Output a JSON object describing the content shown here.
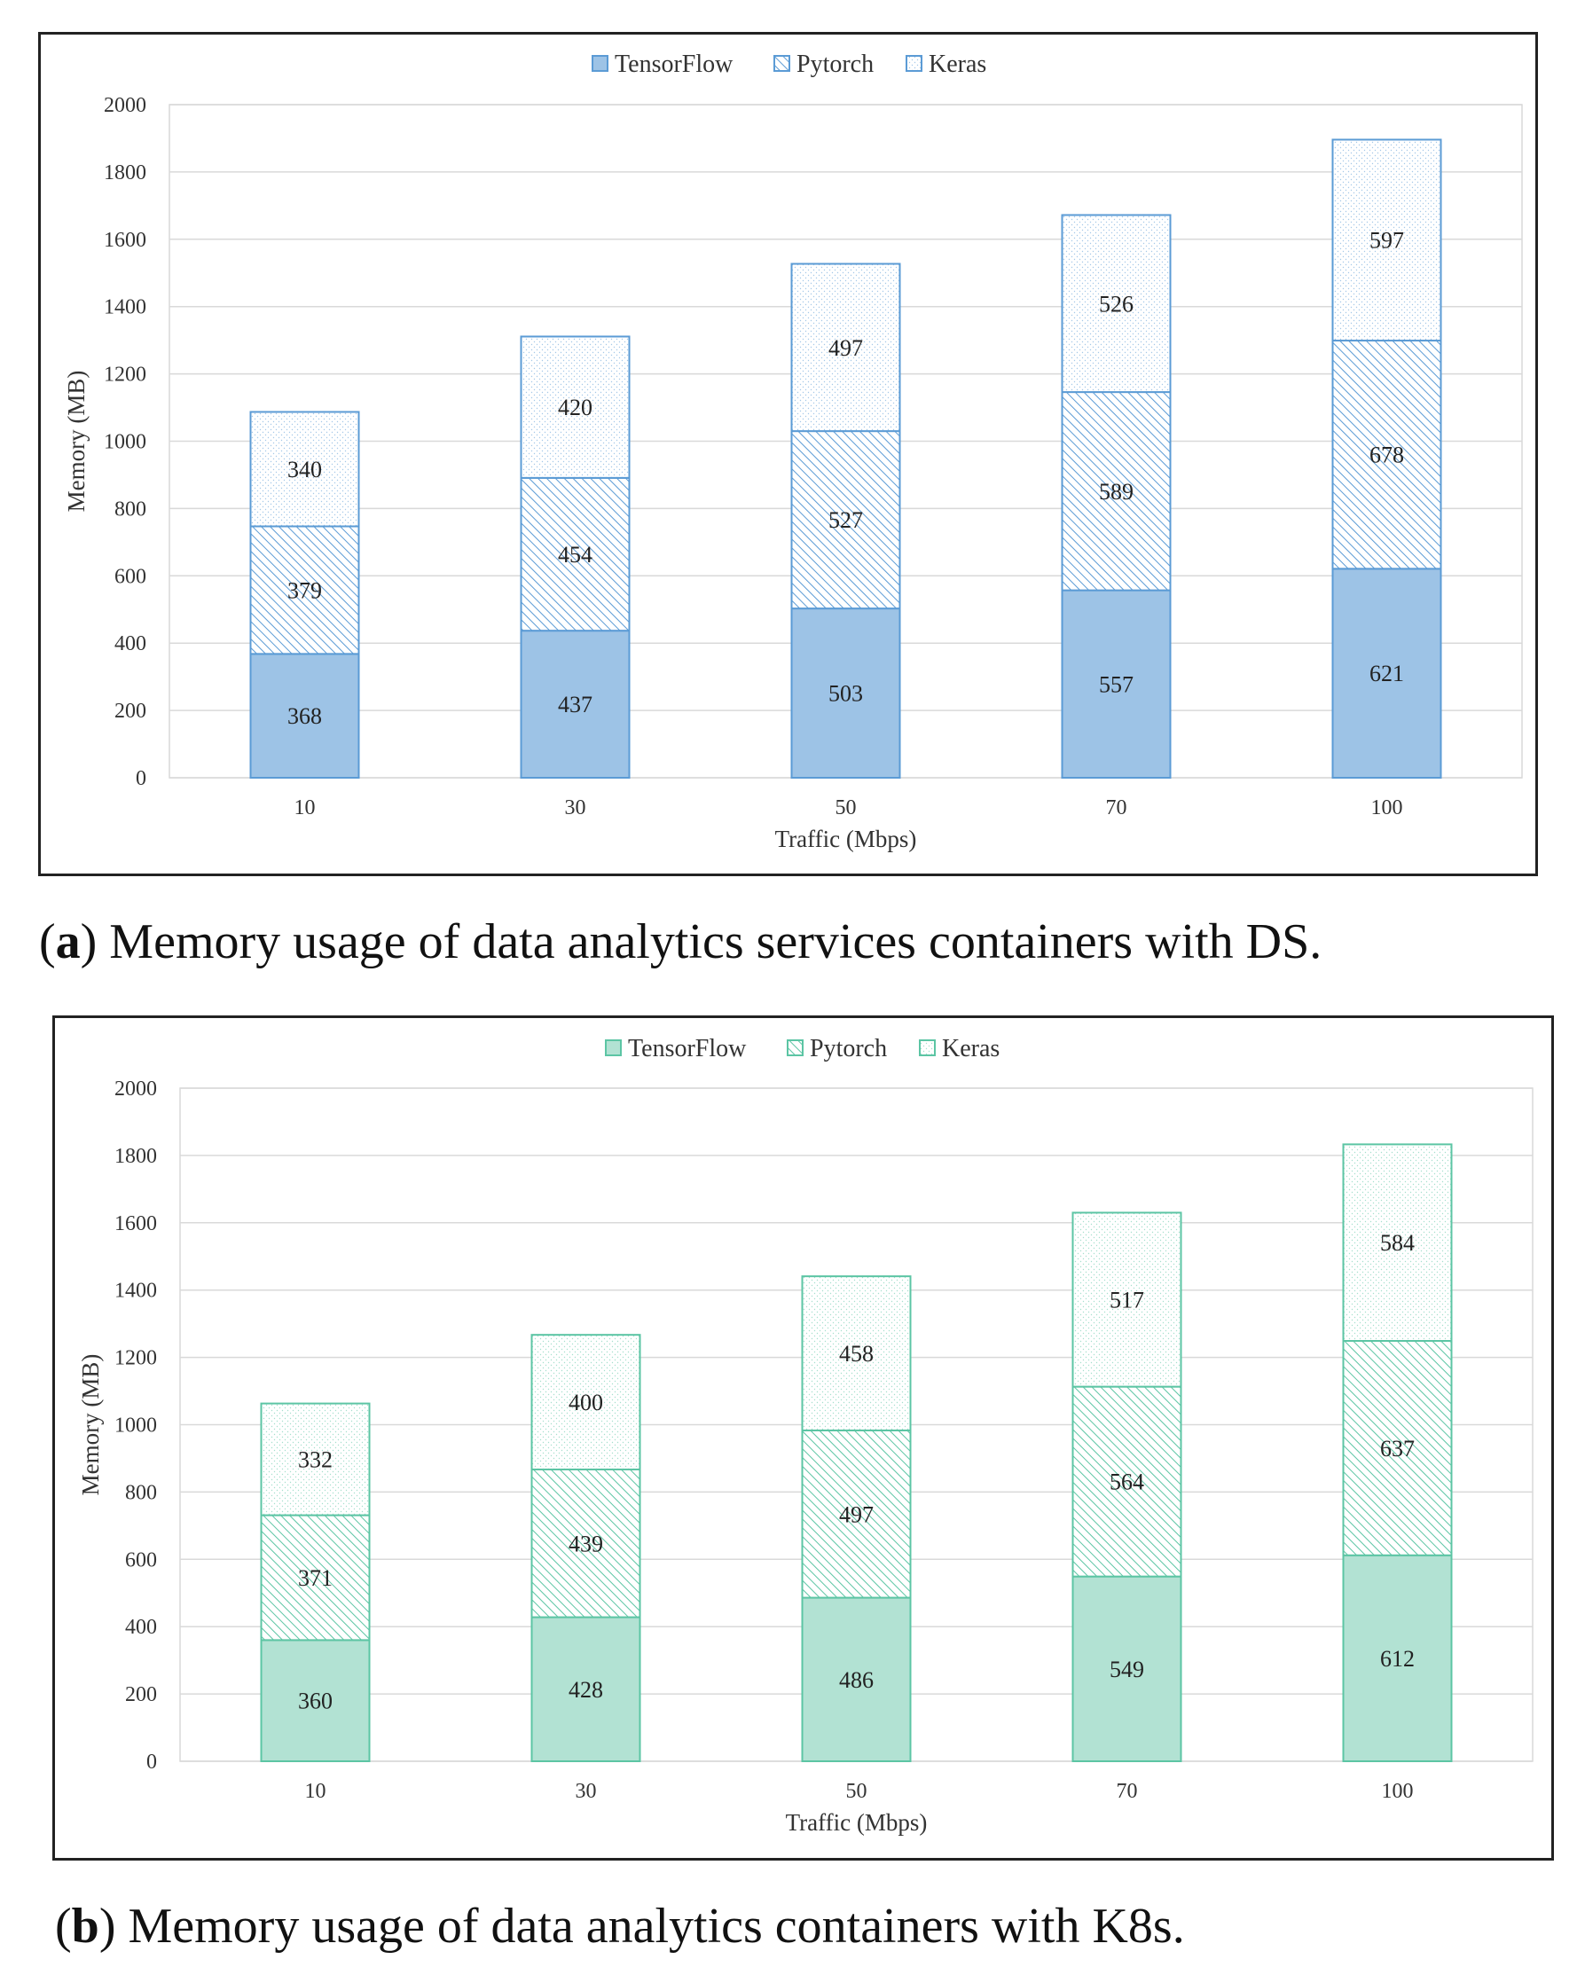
{
  "chart_data": [
    {
      "id": "a",
      "type": "bar",
      "stacked": true,
      "caption_tag": "a",
      "caption_text": ") Memory usage of data analytics services containers with DS.",
      "xlabel": "Traffic (Mbps)",
      "ylabel": "Memory (MB)",
      "ylim": [
        0,
        2000
      ],
      "yticks": [
        0,
        200,
        400,
        600,
        800,
        1000,
        1200,
        1400,
        1600,
        1800,
        2000
      ],
      "grid": true,
      "legend_position": "top-center",
      "categories": [
        "10",
        "30",
        "50",
        "70",
        "100"
      ],
      "series": [
        {
          "name": "TensorFlow",
          "pattern": "solid",
          "values": [
            368,
            437,
            503,
            557,
            621
          ]
        },
        {
          "name": "Pytorch",
          "pattern": "hatch",
          "values": [
            379,
            454,
            527,
            589,
            678
          ]
        },
        {
          "name": "Keras",
          "pattern": "dots",
          "values": [
            340,
            420,
            497,
            526,
            597
          ]
        }
      ],
      "colors": {
        "stroke": "#5b9bd5",
        "fill": "#9dc3e6"
      }
    },
    {
      "id": "b",
      "type": "bar",
      "stacked": true,
      "caption_tag": "b",
      "caption_text": ") Memory usage of data analytics containers with K8s.",
      "xlabel": "Traffic (Mbps)",
      "ylabel": "Memory (MB)",
      "ylim": [
        0,
        2000
      ],
      "yticks": [
        0,
        200,
        400,
        600,
        800,
        1000,
        1200,
        1400,
        1600,
        1800,
        2000
      ],
      "grid": true,
      "legend_position": "top-center",
      "categories": [
        "10",
        "30",
        "50",
        "70",
        "100"
      ],
      "series": [
        {
          "name": "TensorFlow",
          "pattern": "solid",
          "values": [
            360,
            428,
            486,
            549,
            612
          ]
        },
        {
          "name": "Pytorch",
          "pattern": "hatch",
          "values": [
            371,
            439,
            497,
            564,
            637
          ]
        },
        {
          "name": "Keras",
          "pattern": "dots",
          "values": [
            332,
            400,
            458,
            517,
            584
          ]
        }
      ],
      "colors": {
        "stroke": "#5cc5a4",
        "fill": "#b2e2d3"
      }
    }
  ]
}
